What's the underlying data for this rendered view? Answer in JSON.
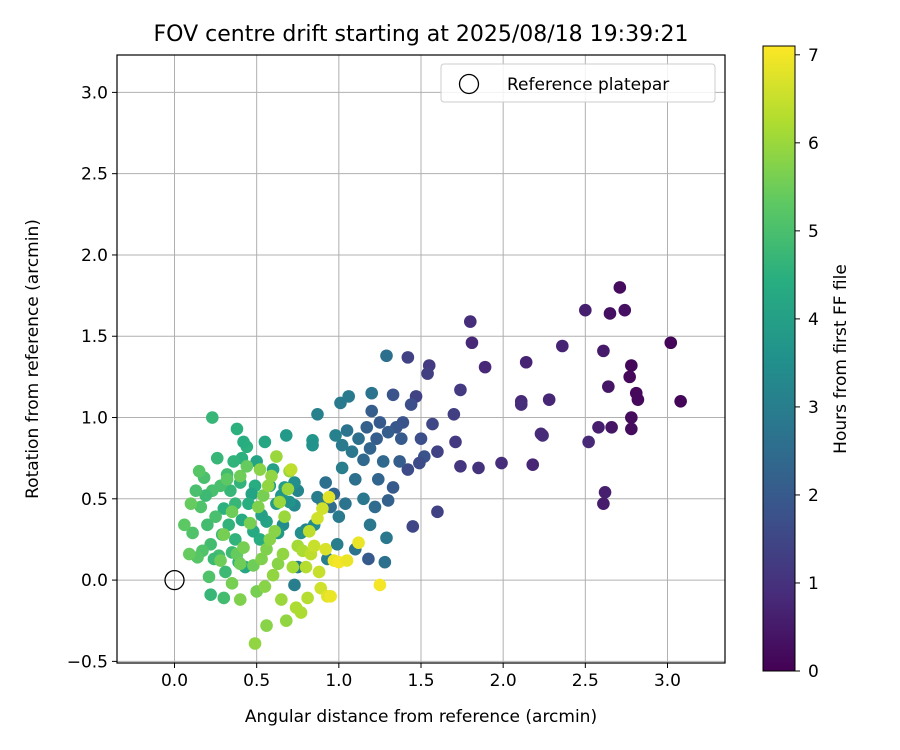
{
  "chart_data": {
    "type": "scatter",
    "title": "FOV centre drift starting at 2025/08/18 19:39:21",
    "xlabel": "Angular distance from reference (arcmin)",
    "ylabel": "Rotation from reference (arcmin)",
    "xlim": [
      -0.35,
      3.35
    ],
    "ylim": [
      -0.51,
      3.23
    ],
    "xticks": [
      0.0,
      0.5,
      1.0,
      1.5,
      2.0,
      2.5,
      3.0
    ],
    "xtick_labels": [
      "0.0",
      "0.5",
      "1.0",
      "1.5",
      "2.0",
      "2.5",
      "3.0"
    ],
    "yticks": [
      -0.5,
      0.0,
      0.5,
      1.0,
      1.5,
      2.0,
      2.5,
      3.0
    ],
    "ytick_labels": [
      "−0.5",
      "0.0",
      "0.5",
      "1.0",
      "1.5",
      "2.0",
      "2.5",
      "3.0"
    ],
    "grid": true,
    "legend": {
      "position": "top-right",
      "entries": [
        "Reference platepar"
      ]
    },
    "reference_point": {
      "x": 0.0,
      "y": 0.0
    },
    "colorbar": {
      "label": "Hours from first FF file",
      "min": 0,
      "max": 7.1,
      "ticks": [
        0,
        1,
        2,
        3,
        4,
        5,
        6,
        7
      ],
      "tick_labels": [
        "0",
        "1",
        "2",
        "3",
        "4",
        "5",
        "6",
        "7"
      ],
      "colormap": "viridis"
    },
    "points": [
      [
        3.02,
        1.46,
        0.1
      ],
      [
        3.08,
        1.1,
        0.1
      ],
      [
        2.82,
        1.11,
        0.15
      ],
      [
        2.81,
        1.15,
        0.15
      ],
      [
        2.78,
        1.32,
        0.1
      ],
      [
        2.77,
        1.25,
        0.15
      ],
      [
        2.78,
        1.0,
        0.2
      ],
      [
        2.78,
        0.93,
        0.2
      ],
      [
        2.74,
        1.66,
        0.3
      ],
      [
        2.71,
        1.8,
        0.2
      ],
      [
        2.65,
        1.64,
        0.3
      ],
      [
        2.64,
        1.19,
        0.4
      ],
      [
        2.61,
        1.41,
        0.5
      ],
      [
        2.66,
        0.94,
        0.4
      ],
      [
        2.58,
        0.94,
        0.6
      ],
      [
        2.61,
        0.47,
        0.55
      ],
      [
        2.62,
        0.54,
        0.6
      ],
      [
        2.52,
        0.85,
        0.8
      ],
      [
        2.5,
        1.66,
        0.6
      ],
      [
        2.36,
        1.44,
        0.7
      ],
      [
        2.28,
        1.11,
        0.75
      ],
      [
        2.24,
        0.89,
        0.9
      ],
      [
        2.23,
        0.9,
        0.85
      ],
      [
        2.18,
        0.71,
        0.75
      ],
      [
        2.14,
        1.34,
        0.7
      ],
      [
        2.11,
        1.1,
        0.8
      ],
      [
        2.11,
        1.08,
        0.9
      ],
      [
        1.99,
        0.72,
        0.9
      ],
      [
        1.89,
        1.31,
        0.8
      ],
      [
        1.85,
        0.69,
        1.0
      ],
      [
        1.81,
        1.46,
        0.8
      ],
      [
        1.8,
        1.59,
        0.9
      ],
      [
        1.74,
        1.17,
        1.2
      ],
      [
        1.74,
        0.7,
        1.1
      ],
      [
        1.71,
        0.85,
        1.2
      ],
      [
        1.7,
        1.02,
        1.3
      ],
      [
        1.6,
        0.42,
        1.4
      ],
      [
        1.6,
        0.79,
        1.4
      ],
      [
        1.57,
        0.96,
        1.5
      ],
      [
        1.55,
        1.32,
        1.2
      ],
      [
        1.54,
        1.27,
        1.3
      ],
      [
        1.52,
        0.76,
        1.8
      ],
      [
        1.5,
        0.87,
        1.7
      ],
      [
        1.49,
        0.72,
        1.6
      ],
      [
        1.47,
        1.13,
        1.4
      ],
      [
        1.45,
        0.33,
        1.5
      ],
      [
        1.44,
        1.08,
        1.7
      ],
      [
        1.42,
        1.37,
        1.4
      ],
      [
        1.42,
        0.68,
        1.6
      ],
      [
        1.39,
        0.97,
        1.8
      ],
      [
        1.38,
        0.87,
        2.0
      ],
      [
        1.37,
        0.73,
        2.1
      ],
      [
        1.35,
        0.94,
        1.9
      ],
      [
        1.33,
        0.57,
        2.0
      ],
      [
        1.33,
        1.14,
        1.8
      ],
      [
        1.3,
        0.91,
        2.1
      ],
      [
        1.3,
        0.49,
        2.2
      ],
      [
        1.29,
        1.38,
        2.6
      ],
      [
        1.29,
        0.26,
        2.8
      ],
      [
        1.28,
        0.11,
        2.6
      ],
      [
        1.27,
        0.73,
        2.4
      ],
      [
        1.25,
        0.97,
        2.0
      ],
      [
        1.24,
        0.62,
        2.3
      ],
      [
        1.23,
        0.87,
        2.1
      ],
      [
        1.22,
        0.45,
        2.5
      ],
      [
        1.2,
        1.04,
        2.1
      ],
      [
        1.2,
        1.15,
        2.7
      ],
      [
        1.19,
        0.81,
        2.3
      ],
      [
        1.19,
        0.34,
        2.8
      ],
      [
        1.18,
        0.13,
        2.0
      ],
      [
        1.17,
        0.94,
        2.2
      ],
      [
        1.15,
        0.74,
        2.4
      ],
      [
        1.15,
        0.5,
        2.8
      ],
      [
        1.12,
        0.87,
        2.6
      ],
      [
        1.1,
        0.62,
        2.6
      ],
      [
        1.1,
        0.19,
        2.7
      ],
      [
        1.08,
        0.79,
        2.8
      ],
      [
        1.06,
        1.13,
        2.9
      ],
      [
        1.05,
        0.92,
        2.7
      ],
      [
        1.04,
        0.47,
        2.7
      ],
      [
        1.02,
        0.83,
        2.9
      ],
      [
        1.02,
        0.69,
        3.0
      ],
      [
        1.01,
        1.09,
        2.9
      ],
      [
        1.0,
        0.39,
        2.9
      ],
      [
        0.99,
        0.22,
        3.0
      ],
      [
        0.98,
        0.89,
        3.1
      ],
      [
        0.97,
        0.53,
        2.3
      ],
      [
        0.95,
        0.45,
        2.5
      ],
      [
        0.93,
        0.13,
        3.0
      ],
      [
        0.92,
        0.6,
        2.6
      ],
      [
        0.9,
        0.48,
        2.9
      ],
      [
        0.87,
        0.51,
        3.0
      ],
      [
        0.87,
        1.02,
        3.1
      ],
      [
        0.85,
        0.34,
        3.4
      ],
      [
        0.84,
        0.86,
        3.7
      ],
      [
        0.84,
        0.83,
        3.6
      ],
      [
        0.8,
        0.31,
        3.2
      ],
      [
        0.77,
        0.29,
        3.5
      ],
      [
        0.75,
        0.55,
        3.2
      ],
      [
        0.75,
        0.08,
        3.0
      ],
      [
        0.73,
        0.6,
        3.5
      ],
      [
        0.73,
        0.46,
        3.3
      ],
      [
        0.73,
        -0.03,
        3.0
      ],
      [
        0.7,
        0.48,
        3.6
      ],
      [
        0.68,
        0.89,
        3.8
      ],
      [
        0.67,
        0.57,
        3.9
      ],
      [
        0.66,
        0.34,
        3.4
      ],
      [
        0.65,
        0.52,
        3.7
      ],
      [
        0.63,
        0.29,
        3.8
      ],
      [
        0.62,
        0.47,
        3.9
      ],
      [
        0.6,
        0.68,
        4.0
      ],
      [
        0.58,
        0.58,
        3.9
      ],
      [
        0.56,
        0.36,
        4.1
      ],
      [
        0.55,
        0.85,
        4.2
      ],
      [
        0.53,
        0.4,
        4.0
      ],
      [
        0.52,
        0.25,
        4.4
      ],
      [
        0.5,
        0.73,
        4.1
      ],
      [
        0.49,
        0.58,
        4.4
      ],
      [
        0.48,
        0.3,
        4.3
      ],
      [
        0.47,
        0.53,
        4.1
      ],
      [
        0.45,
        0.47,
        4.4
      ],
      [
        0.44,
        0.82,
        4.5
      ],
      [
        0.43,
        0.08,
        4.2
      ],
      [
        0.42,
        0.85,
        4.4
      ],
      [
        0.41,
        0.75,
        4.5
      ],
      [
        0.41,
        0.37,
        4.3
      ],
      [
        0.4,
        0.6,
        4.6
      ],
      [
        0.39,
        0.11,
        4.5
      ],
      [
        0.38,
        0.93,
        4.5
      ],
      [
        0.37,
        0.47,
        4.7
      ],
      [
        0.37,
        0.25,
        4.6
      ],
      [
        0.36,
        0.73,
        4.6
      ],
      [
        0.35,
        0.17,
        4.8
      ],
      [
        0.34,
        0.55,
        4.7
      ],
      [
        0.33,
        0.34,
        4.6
      ],
      [
        0.32,
        0.65,
        4.9
      ],
      [
        0.31,
        0.05,
        4.8
      ],
      [
        0.3,
        -0.11,
        4.9
      ],
      [
        0.3,
        0.44,
        4.5
      ],
      [
        0.29,
        0.28,
        4.8
      ],
      [
        0.28,
        0.58,
        5.0
      ],
      [
        0.27,
        0.15,
        4.9
      ],
      [
        0.26,
        0.75,
        4.7
      ],
      [
        0.25,
        0.39,
        5.0
      ],
      [
        0.24,
        0.13,
        4.8
      ],
      [
        0.23,
        1.0,
        4.7
      ],
      [
        0.23,
        0.55,
        5.0
      ],
      [
        0.22,
        -0.09,
        4.7
      ],
      [
        0.22,
        0.22,
        4.9
      ],
      [
        0.21,
        0.02,
        5.1
      ],
      [
        0.2,
        0.34,
        4.9
      ],
      [
        0.19,
        0.52,
        4.8
      ],
      [
        0.18,
        0.63,
        5.0
      ],
      [
        0.17,
        0.18,
        5.1
      ],
      [
        0.16,
        0.45,
        5.1
      ],
      [
        0.15,
        0.67,
        5.2
      ],
      [
        0.14,
        0.14,
        5.2
      ],
      [
        0.13,
        0.55,
        5.0
      ],
      [
        0.11,
        0.29,
        5.1
      ],
      [
        0.1,
        0.47,
        5.4
      ],
      [
        0.09,
        0.16,
        5.4
      ],
      [
        0.06,
        0.34,
        5.3
      ],
      [
        0.32,
        0.62,
        5.3
      ],
      [
        0.35,
        0.42,
        5.5
      ],
      [
        0.38,
        0.16,
        5.4
      ],
      [
        0.4,
        0.64,
        5.5
      ],
      [
        0.42,
        0.2,
        5.6
      ],
      [
        0.44,
        0.7,
        5.4
      ],
      [
        0.46,
        0.35,
        5.6
      ],
      [
        0.48,
        0.09,
        5.5
      ],
      [
        0.5,
        -0.07,
        5.6
      ],
      [
        0.51,
        0.45,
        5.7
      ],
      [
        0.52,
        0.68,
        5.8
      ],
      [
        0.53,
        0.13,
        5.7
      ],
      [
        0.54,
        0.52,
        5.6
      ],
      [
        0.55,
        -0.04,
        5.8
      ],
      [
        0.56,
        0.19,
        5.7
      ],
      [
        0.57,
        0.58,
        5.9
      ],
      [
        0.58,
        0.25,
        5.8
      ],
      [
        0.59,
        0.64,
        5.9
      ],
      [
        0.6,
        0.03,
        5.9
      ],
      [
        0.61,
        0.3,
        5.8
      ],
      [
        0.62,
        0.76,
        6.0
      ],
      [
        0.63,
        0.1,
        5.8
      ],
      [
        0.64,
        0.48,
        6.0
      ],
      [
        0.65,
        -0.12,
        6.0
      ],
      [
        0.66,
        0.16,
        5.9
      ],
      [
        0.67,
        0.39,
        6.0
      ],
      [
        0.68,
        -0.25,
        5.9
      ],
      [
        0.69,
        0.56,
        6.0
      ],
      [
        0.7,
        0.67,
        6.0
      ],
      [
        0.72,
        0.08,
        6.1
      ],
      [
        0.74,
        -0.17,
        6.2
      ],
      [
        0.75,
        0.21,
        6.1
      ],
      [
        0.77,
        -0.2,
        6.2
      ],
      [
        0.78,
        0.18,
        6.2
      ],
      [
        0.8,
        0.08,
        6.3
      ],
      [
        0.81,
        -0.11,
        6.3
      ],
      [
        0.82,
        0.3,
        6.4
      ],
      [
        0.83,
        0.16,
        6.4
      ],
      [
        0.85,
        0.21,
        6.5
      ],
      [
        0.87,
        0.38,
        6.6
      ],
      [
        0.88,
        0.05,
        6.5
      ],
      [
        0.89,
        -0.05,
        6.6
      ],
      [
        0.9,
        0.44,
        6.6
      ],
      [
        0.92,
        0.19,
        6.7
      ],
      [
        0.93,
        -0.1,
        6.8
      ],
      [
        0.94,
        0.51,
        6.8
      ],
      [
        0.95,
        -0.1,
        6.9
      ],
      [
        0.97,
        0.12,
        6.9
      ],
      [
        1.0,
        0.11,
        7.0
      ],
      [
        1.05,
        0.12,
        6.9
      ],
      [
        1.12,
        0.23,
        6.9
      ],
      [
        1.25,
        -0.03,
        7.0
      ],
      [
        0.49,
        -0.39,
        5.9
      ],
      [
        0.56,
        -0.28,
        5.8
      ],
      [
        0.71,
        0.68,
        6.4
      ],
      [
        0.4,
        -0.12,
        5.7
      ],
      [
        0.35,
        -0.02,
        5.6
      ],
      [
        0.3,
        0.28,
        5.6
      ],
      [
        0.28,
        0.12,
        5.5
      ],
      [
        0.4,
        0.1,
        5.5
      ]
    ]
  }
}
